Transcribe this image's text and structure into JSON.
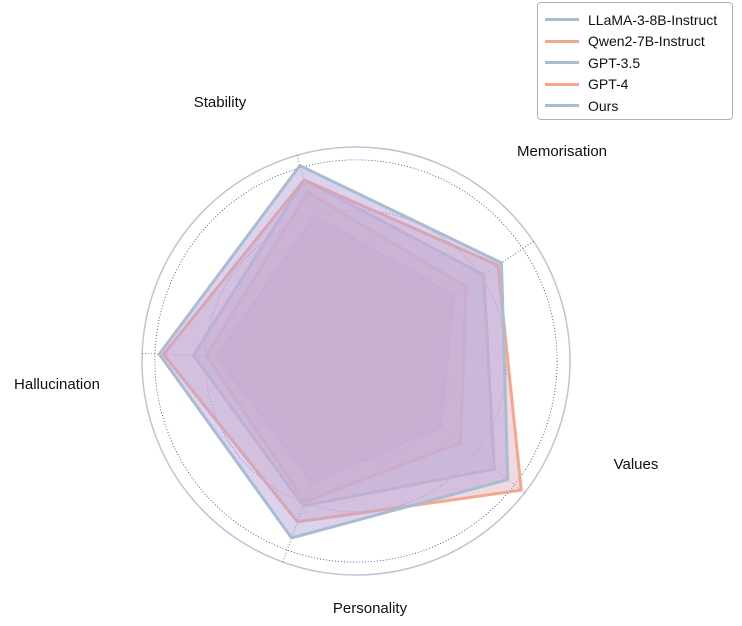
{
  "chart_data": {
    "type": "radar",
    "title": "",
    "axes": [
      "Stability",
      "Memorisation",
      "Values",
      "Personality",
      "Hallucination"
    ],
    "range": [
      0,
      1
    ],
    "series": [
      {
        "name": "LLaMA-3-8B-Instruct",
        "color": "#a9bcd2",
        "fill": "#cfa9c6",
        "values": [
          0.7,
          0.55,
          0.5,
          0.6,
          0.65
        ]
      },
      {
        "name": "Qwen2-7B-Instruct",
        "color": "#f5a78c",
        "fill": "#e9c2b4",
        "values": [
          0.82,
          0.62,
          0.62,
          0.7,
          0.7
        ]
      },
      {
        "name": "GPT-3.5",
        "color": "#a9bcd2",
        "fill": "#c6b3d9",
        "values": [
          0.88,
          0.72,
          0.82,
          0.72,
          0.76
        ]
      },
      {
        "name": "GPT-4",
        "color": "#f5a78c",
        "fill": "#dcb8c4",
        "values": [
          0.88,
          0.8,
          0.98,
          0.8,
          0.9
        ]
      },
      {
        "name": "Ours",
        "color": "#a9bcd2",
        "fill": "#b7a5dc",
        "values": [
          0.95,
          0.82,
          0.9,
          0.88,
          0.92
        ]
      }
    ]
  }
}
